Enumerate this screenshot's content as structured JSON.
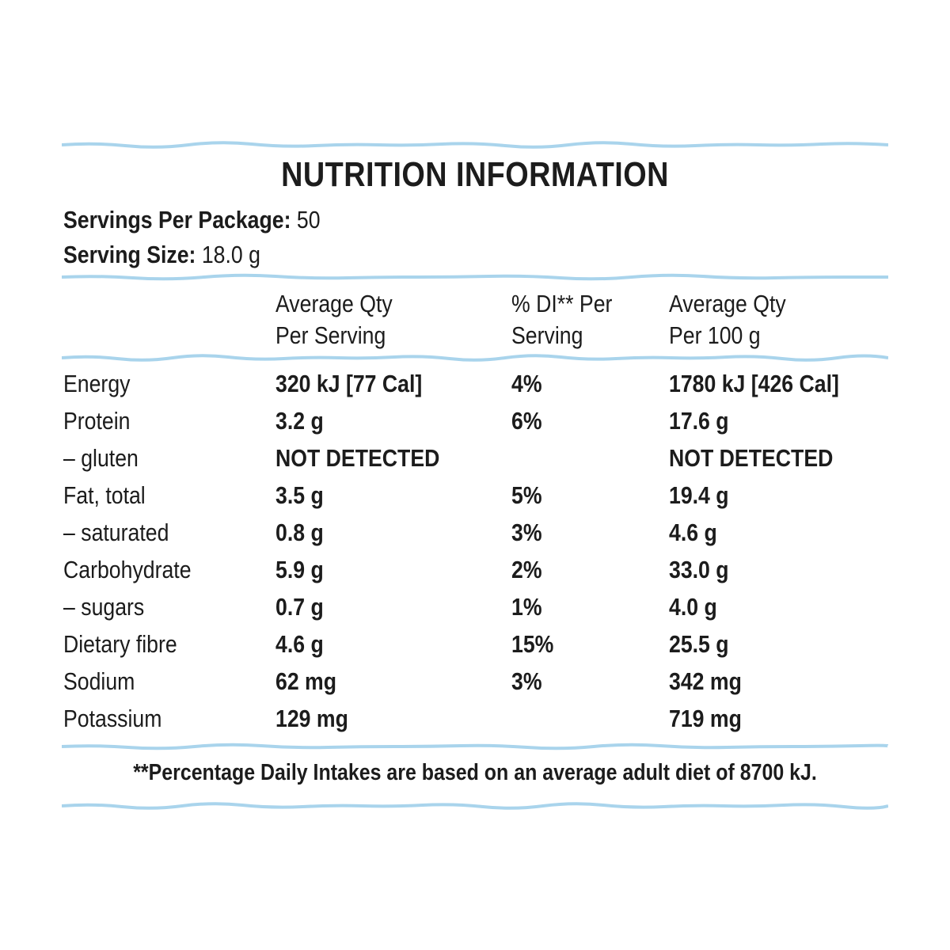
{
  "title": "NUTRITION INFORMATION",
  "servings_per_package": {
    "label": "Servings Per Package:",
    "value": "50"
  },
  "serving_size": {
    "label": "Serving Size:",
    "value": "18.0 g"
  },
  "columns": [
    {
      "line1": "Average Qty",
      "line2": "Per Serving"
    },
    {
      "line1": "% DI** Per",
      "line2": "Serving"
    },
    {
      "line1": "Average Qty",
      "line2": "Per 100 g"
    }
  ],
  "rows": [
    {
      "name": "Energy",
      "per_serving": "320 kJ [77 Cal]",
      "di": "4%",
      "per_100g": "1780 kJ [426 Cal]"
    },
    {
      "name": "Protein",
      "per_serving": "3.2 g",
      "di": "6%",
      "per_100g": "17.6 g"
    },
    {
      "name": "– gluten",
      "per_serving": "NOT DETECTED",
      "di": "",
      "per_100g": "NOT DETECTED"
    },
    {
      "name": "Fat, total",
      "per_serving": "3.5 g",
      "di": "5%",
      "per_100g": "19.4 g"
    },
    {
      "name": "– saturated",
      "per_serving": "0.8 g",
      "di": "3%",
      "per_100g": "4.6 g"
    },
    {
      "name": "Carbohydrate",
      "per_serving": "5.9 g",
      "di": "2%",
      "per_100g": "33.0 g"
    },
    {
      "name": "– sugars",
      "per_serving": "0.7 g",
      "di": "1%",
      "per_100g": "4.0 g"
    },
    {
      "name": "Dietary fibre",
      "per_serving": "4.6 g",
      "di": "15%",
      "per_100g": "25.5 g"
    },
    {
      "name": "Sodium",
      "per_serving": "62 mg",
      "di": "3%",
      "per_100g": "342 mg"
    },
    {
      "name": "Potassium",
      "per_serving": "129 mg",
      "di": "",
      "per_100g": "719 mg"
    }
  ],
  "footnote": "**Percentage Daily Intakes are based on an average adult diet of 8700 kJ.",
  "colors": {
    "rule": "#a9d4ec",
    "text": "#1c1c1c",
    "background": "#ffffff"
  }
}
